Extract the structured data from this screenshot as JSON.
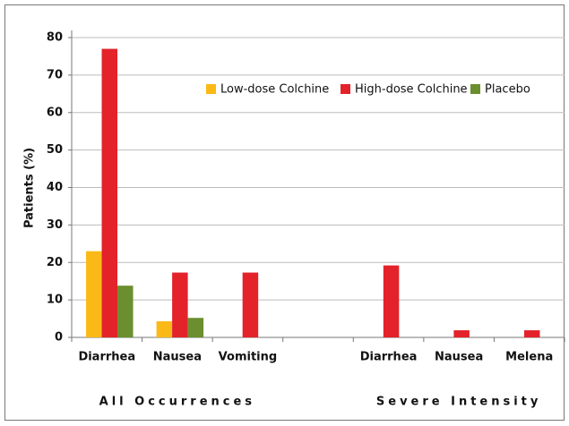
{
  "chart_data": {
    "type": "bar",
    "y_label": "Patients (%)",
    "categories": [
      "Diarrhea",
      "Nausea",
      "Vomiting",
      null,
      "Diarrhea",
      "Nausea",
      "Melena"
    ],
    "groups": [
      "All Occurrences",
      "Severe Intensity"
    ],
    "series": [
      {
        "name": "Low-dose Colchine",
        "color": "#fbb917",
        "values": [
          23,
          4.3,
          0,
          null,
          0,
          0,
          0
        ]
      },
      {
        "name": "High-dose Colchine",
        "color": "#e3222a",
        "values": [
          77,
          17.3,
          17.3,
          null,
          19.2,
          1.9,
          1.9
        ]
      },
      {
        "name": "Placebo",
        "color": "#6b8e2e",
        "values": [
          13.8,
          5.2,
          0,
          null,
          0,
          0,
          0
        ]
      }
    ],
    "ylim": [
      0,
      80
    ],
    "yticks": [
      0,
      10,
      20,
      30,
      40,
      50,
      60,
      70,
      80
    ],
    "grid": true,
    "legend": "top-right"
  }
}
